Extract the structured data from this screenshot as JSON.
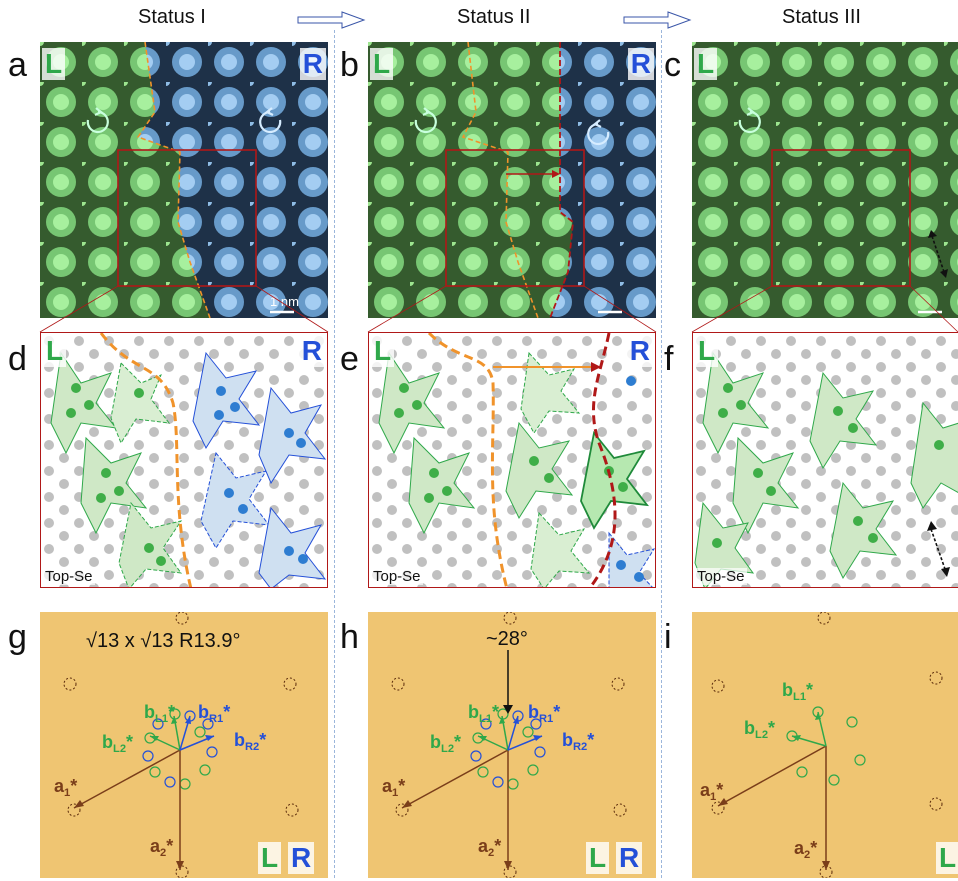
{
  "statuses": [
    "Status I",
    "Status II",
    "Status III"
  ],
  "panel_letters": [
    "a",
    "b",
    "c",
    "d",
    "e",
    "f",
    "g",
    "h",
    "i"
  ],
  "region_L": "L",
  "region_R": "R",
  "scalebar": "1 nm",
  "top_se": "Top-Se",
  "fft": {
    "reconstruction": "√13 x √13 R13.9°",
    "angle": "~28°",
    "bL1": {
      "b": "b",
      "sub": "L1",
      "sup": "*"
    },
    "bL2": {
      "b": "b",
      "sub": "L2",
      "sup": "*"
    },
    "bR1": {
      "b": "b",
      "sub": "R1",
      "sup": "*"
    },
    "bR2": {
      "b": "b",
      "sub": "R2",
      "sup": "*"
    },
    "a1": {
      "b": "a",
      "sub": "1",
      "sup": "*"
    },
    "a2": {
      "b": "a",
      "sub": "2",
      "sup": "*"
    }
  },
  "colors": {
    "green": "#2fa84a",
    "blue": "#2450d8",
    "brown": "#7a3e1a",
    "orange": "#f0932b",
    "darkred": "#b01818",
    "fft_bg": "#efc572"
  }
}
